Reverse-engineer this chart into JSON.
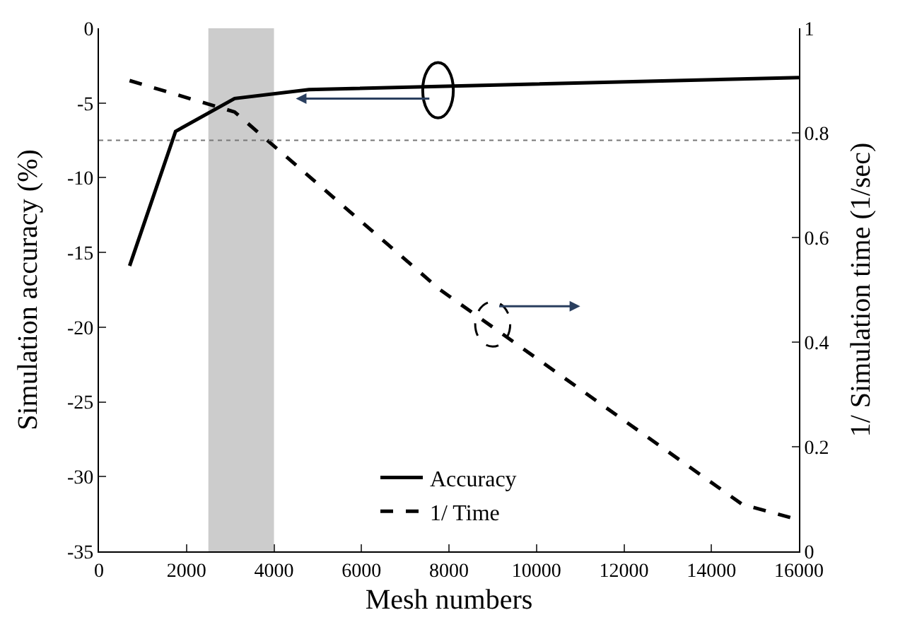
{
  "chart_data": {
    "type": "line",
    "xlabel": "Mesh numbers",
    "ylabel": "Simulation accuracy (%)",
    "y2label": "1/ Simulation time (1/sec)",
    "series": [
      {
        "name": "Accuracy",
        "color": "#000000",
        "line_style": "solid",
        "x": [
          700,
          1750,
          3100,
          4800,
          16000
        ],
        "values": [
          -15.9,
          -6.9,
          -4.7,
          -4.1,
          -3.3
        ]
      },
      {
        "name": "1/ Time",
        "color": "#000000",
        "line_style": "dashed",
        "axis": "y2",
        "x": [
          700,
          3100,
          7800,
          14700,
          16000
        ],
        "values": [
          0.9,
          0.84,
          0.5,
          0.09,
          0.06
        ]
      }
    ],
    "xlim": [
      0,
      16000
    ],
    "xticks": [
      0,
      2000,
      4000,
      6000,
      8000,
      10000,
      12000,
      14000,
      16000
    ],
    "ylim": [
      -35,
      0
    ],
    "yticks": [
      -35,
      -30,
      -25,
      -20,
      -15,
      -10,
      -5,
      0
    ],
    "y2lim": [
      0,
      1
    ],
    "y2ticks": [
      0,
      0.2,
      0.4,
      0.6,
      0.8,
      1
    ],
    "ref_lines": [
      {
        "axis": "y",
        "value": -7.5,
        "color": "#777777",
        "line_style": "dotted"
      }
    ],
    "bands": [
      {
        "axis": "x",
        "from": 2500,
        "to": 4000,
        "color": "#cccccc"
      }
    ],
    "legend": "bottom",
    "grid": false,
    "marker": "none"
  }
}
